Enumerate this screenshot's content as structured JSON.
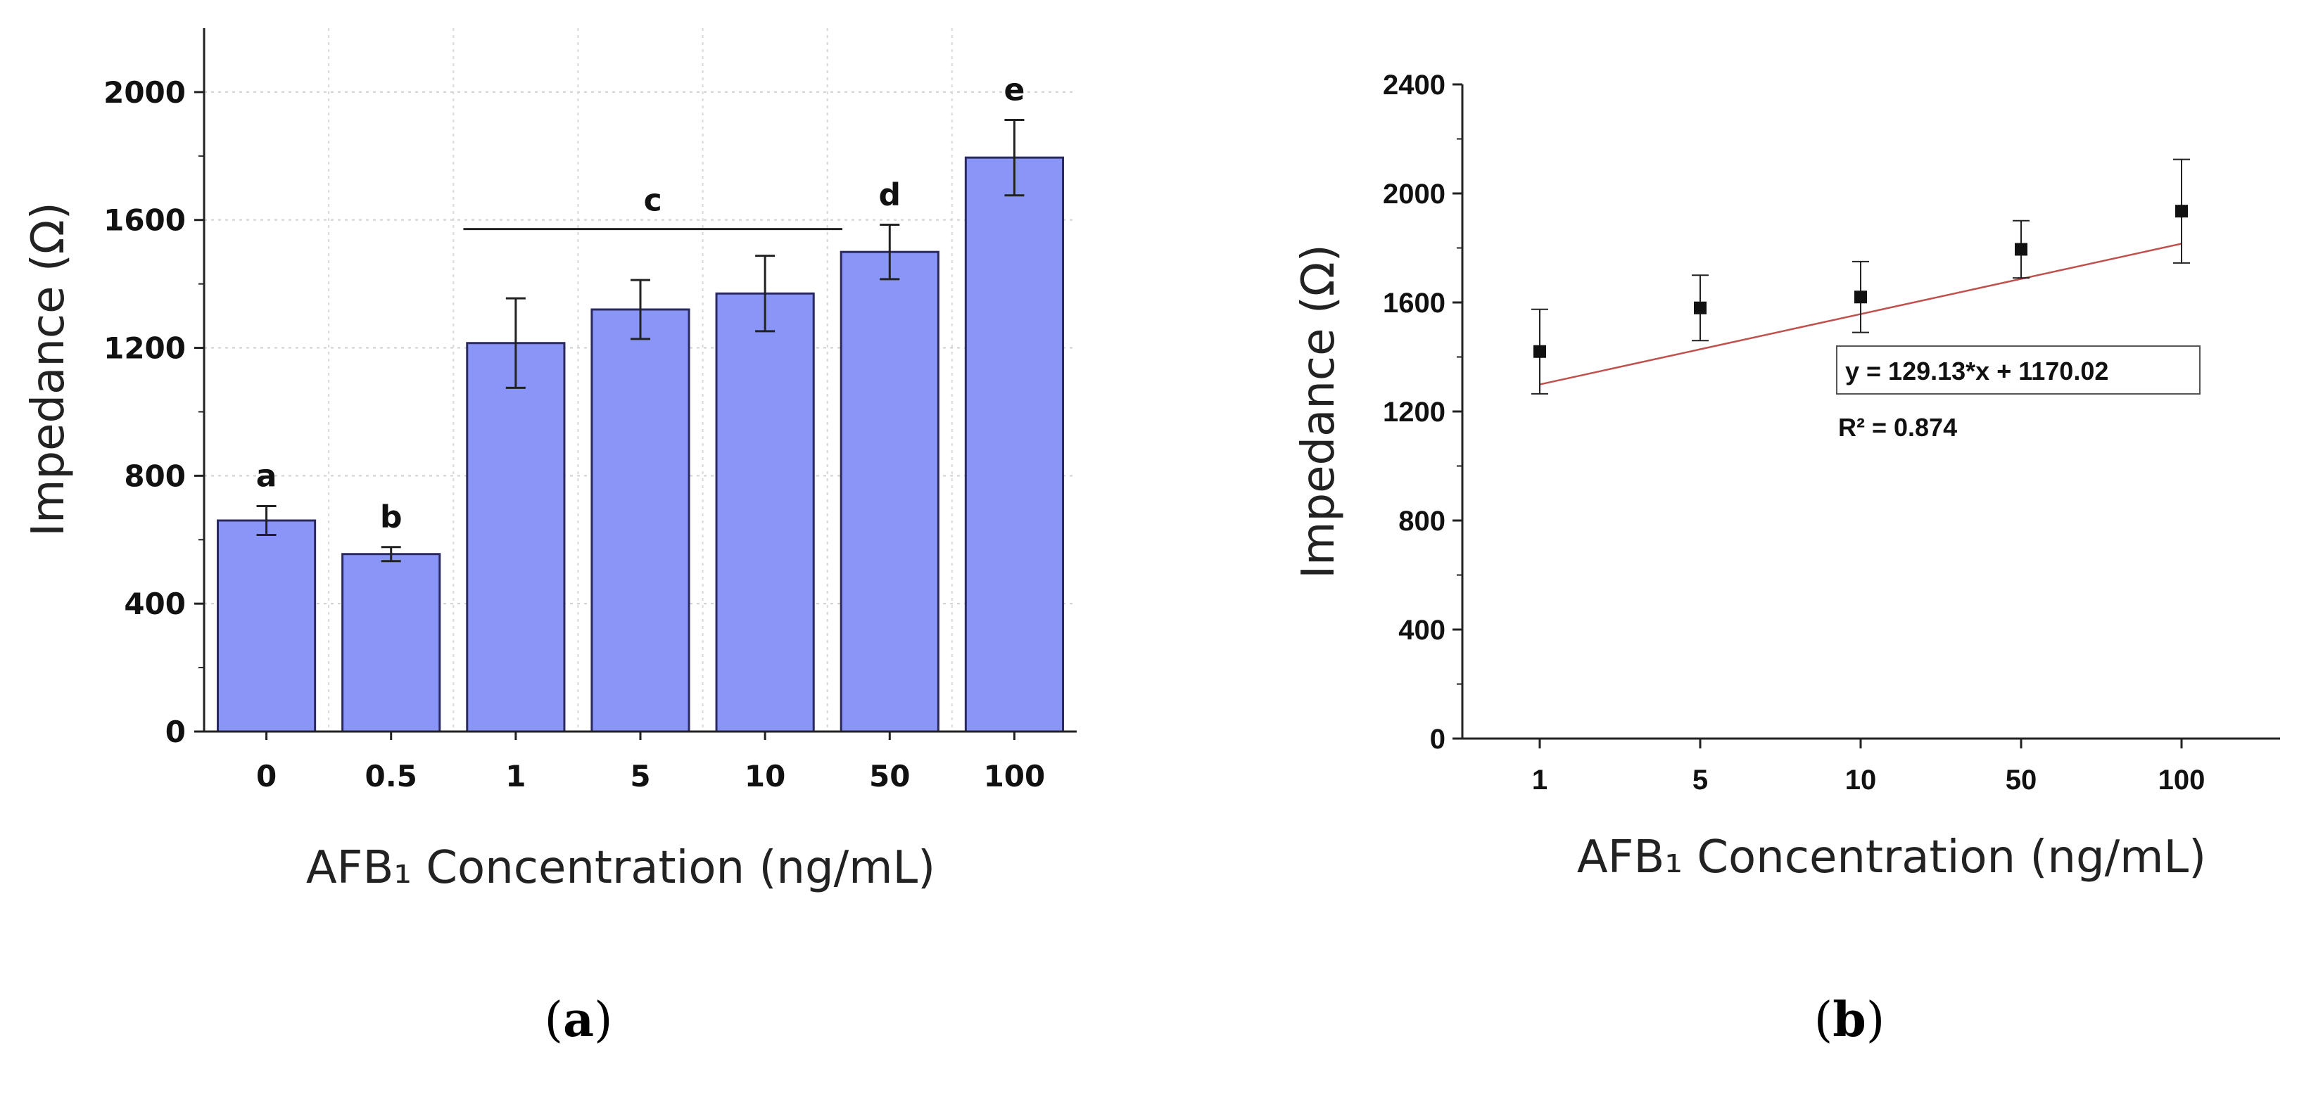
{
  "chart_data": [
    {
      "panel": "(a)",
      "type": "bar",
      "title": "",
      "xlabel": "AFB₁ Concentration (ng/mL)",
      "ylabel": "Impedance (Ω)",
      "ylim": [
        0,
        2200
      ],
      "yticks": [
        0,
        400,
        800,
        1200,
        1600,
        2000
      ],
      "grid": true,
      "bar_color": "#8a96f7",
      "bar_edge": "#2a2a60",
      "categories": [
        "0",
        "0.5",
        "1",
        "5",
        "10",
        "50",
        "100"
      ],
      "values": [
        660,
        555,
        1215,
        1320,
        1370,
        1500,
        1795
      ],
      "errors": [
        45,
        22,
        140,
        92,
        118,
        85,
        118
      ],
      "significance_letters": [
        {
          "label": "a",
          "over": [
            "0"
          ]
        },
        {
          "label": "b",
          "over": [
            "0.5"
          ]
        },
        {
          "label": "c",
          "over": [
            "1",
            "5",
            "10"
          ]
        },
        {
          "label": "d",
          "over": [
            "50"
          ]
        },
        {
          "label": "e",
          "over": [
            "100"
          ]
        }
      ]
    },
    {
      "panel": "(b)",
      "type": "scatter",
      "title": "",
      "xlabel": "AFB₁ Concentration (ng/mL)",
      "ylabel": "Impedance (Ω)",
      "ylim": [
        0,
        2400
      ],
      "yticks": [
        0,
        400,
        800,
        1200,
        1600,
        2000,
        2400
      ],
      "grid": false,
      "categories": [
        "1",
        "5",
        "10",
        "50",
        "100"
      ],
      "values": [
        1420,
        1580,
        1620,
        1795,
        1935
      ],
      "errors": [
        155,
        120,
        130,
        105,
        190
      ],
      "fit_line": {
        "slope": 129.13,
        "intercept": 1170.02,
        "color": "#c0504d"
      },
      "annotations": {
        "equation": "y = 129.13*x + 1170.02",
        "r_squared": "R² = 0.874"
      }
    }
  ],
  "panel_labels": {
    "a_letter": "a",
    "b_letter": "b"
  }
}
